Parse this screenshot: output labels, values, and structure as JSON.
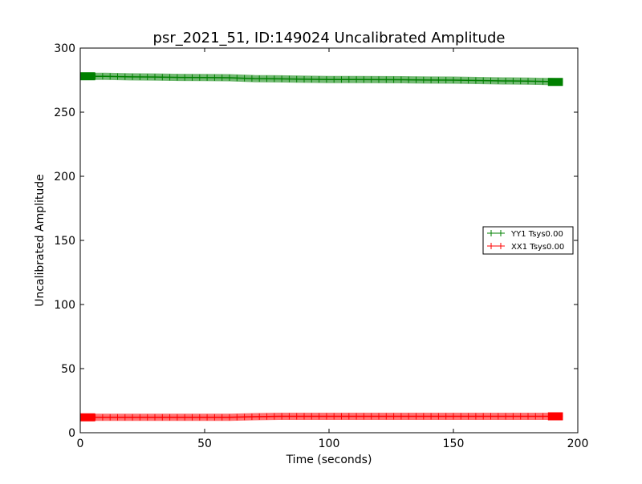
{
  "chart_data": {
    "type": "line",
    "title": "psr_2021_51, ID:149024 Uncalibrated Amplitude",
    "xlabel": "Time (seconds)",
    "ylabel": "Uncalibrated Amplitude",
    "xlim": [
      0,
      200
    ],
    "ylim": [
      0,
      300
    ],
    "xticks": [
      "0",
      "50",
      "100",
      "150",
      "200"
    ],
    "yticks": [
      "0",
      "50",
      "100",
      "150",
      "200",
      "250",
      "300"
    ],
    "grid": false,
    "legend_position": "center-right",
    "series": [
      {
        "name": "YY1 Tsys0.00",
        "color": "#008000",
        "x": [
          0,
          10,
          20,
          30,
          40,
          50,
          60,
          70,
          80,
          90,
          100,
          110,
          120,
          130,
          140,
          150,
          160,
          170,
          180,
          190,
          194
        ],
        "y": [
          278,
          278,
          277.6,
          277.4,
          277.1,
          277,
          276.9,
          276.2,
          276,
          275.7,
          275.5,
          275.5,
          275.4,
          275.3,
          275.1,
          275,
          274.7,
          274.4,
          274.2,
          273.8,
          273.6
        ]
      },
      {
        "name": "XX1 Tsys0.00",
        "color": "#ff0000",
        "x": [
          0,
          10,
          20,
          30,
          40,
          50,
          60,
          70,
          80,
          90,
          100,
          110,
          120,
          130,
          140,
          150,
          160,
          170,
          180,
          190,
          194
        ],
        "y": [
          12,
          12,
          12,
          12,
          12,
          12,
          12,
          12.5,
          12.8,
          12.8,
          12.8,
          12.8,
          12.8,
          12.8,
          12.8,
          12.8,
          12.8,
          12.8,
          12.8,
          12.8,
          12.8
        ]
      }
    ]
  }
}
